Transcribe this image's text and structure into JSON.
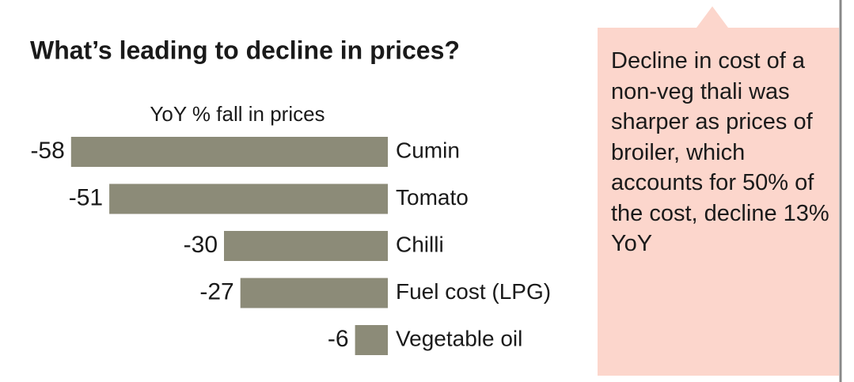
{
  "chart_data": {
    "type": "bar",
    "orientation": "horizontal",
    "title": "What’s leading to decline in prices?",
    "subtitle": "YoY % fall in prices",
    "categories": [
      "Cumin",
      "Tomato",
      "Chilli",
      "Fuel cost (LPG)",
      "Vegetable oil"
    ],
    "values": [
      -58,
      -51,
      -30,
      -27,
      -6
    ],
    "color": "#8c8b78",
    "xlim": [
      -60,
      0
    ],
    "annotation": "Decline in cost of a non-veg thali was sharper as prices of broiler, which accounts for 50% of the cost, decline 13% YoY"
  }
}
